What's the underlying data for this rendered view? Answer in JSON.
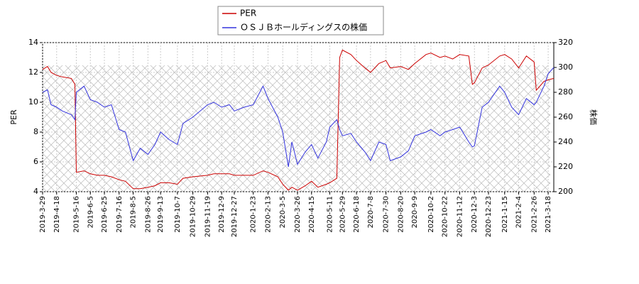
{
  "chart_data": {
    "type": "line",
    "x": [
      "2019-3-29",
      "2019-4-5",
      "2019-4-10",
      "2019-4-18",
      "2019-4-26",
      "2019-5-9",
      "2019-5-14",
      "2019-5-16",
      "2019-5-27",
      "2019-6-5",
      "2019-6-15",
      "2019-6-25",
      "2019-7-5",
      "2019-7-16",
      "2019-7-25",
      "2019-8-5",
      "2019-8-15",
      "2019-8-26",
      "2019-9-5",
      "2019-9-13",
      "2019-9-25",
      "2019-10-7",
      "2019-10-15",
      "2019-10-29",
      "2019-11-19",
      "2019-11-28",
      "2019-12-9",
      "2019-12-20",
      "2019-12-27",
      "2020-1-10",
      "2020-1-23",
      "2020-2-6",
      "2020-2-13",
      "2020-2-27",
      "2020-3-5",
      "2020-3-13",
      "2020-3-18",
      "2020-3-26",
      "2020-4-6",
      "2020-4-15",
      "2020-4-24",
      "2020-5-6",
      "2020-5-11",
      "2020-5-21",
      "2020-5-25",
      "2020-5-29",
      "2020-6-10",
      "2020-6-18",
      "2020-6-30",
      "2020-7-8",
      "2020-7-20",
      "2020-7-30",
      "2020-8-5",
      "2020-8-20",
      "2020-8-31",
      "2020-9-9",
      "2020-9-25",
      "2020-10-2",
      "2020-10-15",
      "2020-10-22",
      "2020-11-2",
      "2020-11-12",
      "2020-11-25",
      "2020-11-30",
      "2020-12-3",
      "2020-12-14",
      "2020-12-23",
      "2021-1-8",
      "2021-1-15",
      "2021-1-25",
      "2021-2-4",
      "2021-2-15",
      "2021-2-26",
      "2021-3-1",
      "2021-3-12",
      "2021-3-18",
      "2021-3-26"
    ],
    "series": [
      {
        "name": "PER",
        "color": "#cc0000",
        "values": [
          12.2,
          12.4,
          12.0,
          11.8,
          11.7,
          11.6,
          11.2,
          5.3,
          5.4,
          5.2,
          5.1,
          5.1,
          5.0,
          4.8,
          4.7,
          4.2,
          4.2,
          4.3,
          4.4,
          4.6,
          4.6,
          4.5,
          4.9,
          5.0,
          5.1,
          5.2,
          5.2,
          5.2,
          5.1,
          5.1,
          5.1,
          5.4,
          5.3,
          5.0,
          4.5,
          4.1,
          4.3,
          4.1,
          4.4,
          4.7,
          4.3,
          4.5,
          4.6,
          4.9,
          13.0,
          13.5,
          13.2,
          12.8,
          12.3,
          12.0,
          12.6,
          12.8,
          12.3,
          12.4,
          12.2,
          12.6,
          13.2,
          13.3,
          13.0,
          13.1,
          12.9,
          13.2,
          13.1,
          11.2,
          11.3,
          12.3,
          12.5,
          13.1,
          13.2,
          12.9,
          12.3,
          13.1,
          12.7,
          10.8,
          11.4,
          11.5,
          11.6
        ]
      },
      {
        "name": "ＯＳＪＢホールディングスの株価",
        "color": "#3333dd",
        "axis": "y2",
        "values": [
          280,
          282,
          270,
          268,
          265,
          262,
          258,
          280,
          285,
          274,
          272,
          268,
          270,
          250,
          248,
          225,
          235,
          230,
          238,
          248,
          242,
          238,
          255,
          260,
          270,
          272,
          268,
          270,
          265,
          268,
          270,
          285,
          275,
          260,
          248,
          220,
          240,
          222,
          232,
          238,
          227,
          240,
          252,
          258,
          250,
          245,
          247,
          240,
          232,
          225,
          240,
          238,
          225,
          228,
          233,
          245,
          248,
          250,
          245,
          248,
          250,
          252,
          240,
          236,
          237,
          268,
          272,
          285,
          280,
          268,
          262,
          275,
          270,
          272,
          285,
          295,
          300
        ]
      }
    ],
    "xlim": [
      "2019-3-29",
      "2021-3-26"
    ],
    "xticks": [
      "2019-3-29",
      "2019-4-18",
      "2019-5-16",
      "2019-6-5",
      "2019-6-25",
      "2019-7-16",
      "2019-8-5",
      "2019-8-26",
      "2019-9-13",
      "2019-10-7",
      "2019-10-29",
      "2019-11-19",
      "2019-12-9",
      "2019-12-27",
      "2020-1-23",
      "2020-2-13",
      "2020-3-5",
      "2020-3-26",
      "2020-4-15",
      "2020-5-11",
      "2020-5-29",
      "2020-6-18",
      "2020-7-8",
      "2020-7-30",
      "2020-8-20",
      "2020-9-9",
      "2020-10-2",
      "2020-10-22",
      "2020-11-12",
      "2020-12-3",
      "2020-12-23",
      "2021-1-15",
      "2021-2-4",
      "2021-2-26",
      "2021-3-18"
    ],
    "ylim": [
      4,
      14
    ],
    "yticks": [
      4,
      6,
      8,
      10,
      12,
      14
    ],
    "y2lim": [
      200,
      320
    ],
    "y2ticks": [
      200,
      220,
      240,
      260,
      280,
      300,
      320
    ],
    "ylabel": "PER",
    "y2label": "株価",
    "grid": true,
    "legend": "top"
  }
}
